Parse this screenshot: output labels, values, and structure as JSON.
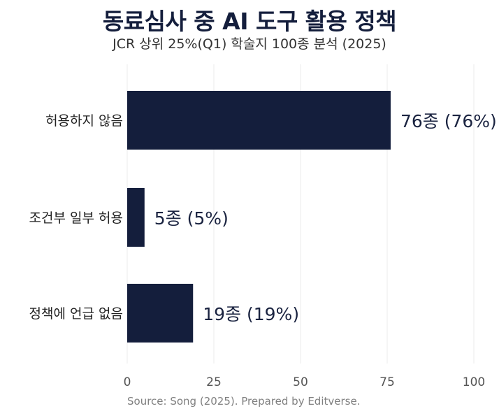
{
  "chart_data": {
    "type": "bar",
    "orientation": "horizontal",
    "title": "동료심사 중 AI 도구 활용 정책",
    "subtitle": "JCR 상위 25%(Q1) 학술지 100종 분석 (2025)",
    "categories": [
      "허용하지 않음",
      "조건부 일부 허용",
      "정책에 언급 없음"
    ],
    "values": [
      76,
      5,
      19
    ],
    "data_labels": [
      "76종 (76%)",
      "5종 (5%)",
      "19종 (19%)"
    ],
    "xlim": [
      0,
      100
    ],
    "x_ticks": [
      0,
      25,
      50,
      75,
      100
    ],
    "x_tick_labels": [
      "0",
      "25",
      "50",
      "75",
      "100"
    ],
    "grid": "vertical",
    "bar_color": "#141e3c",
    "source": "Source: Song (2025). Prepared by Editverse."
  }
}
